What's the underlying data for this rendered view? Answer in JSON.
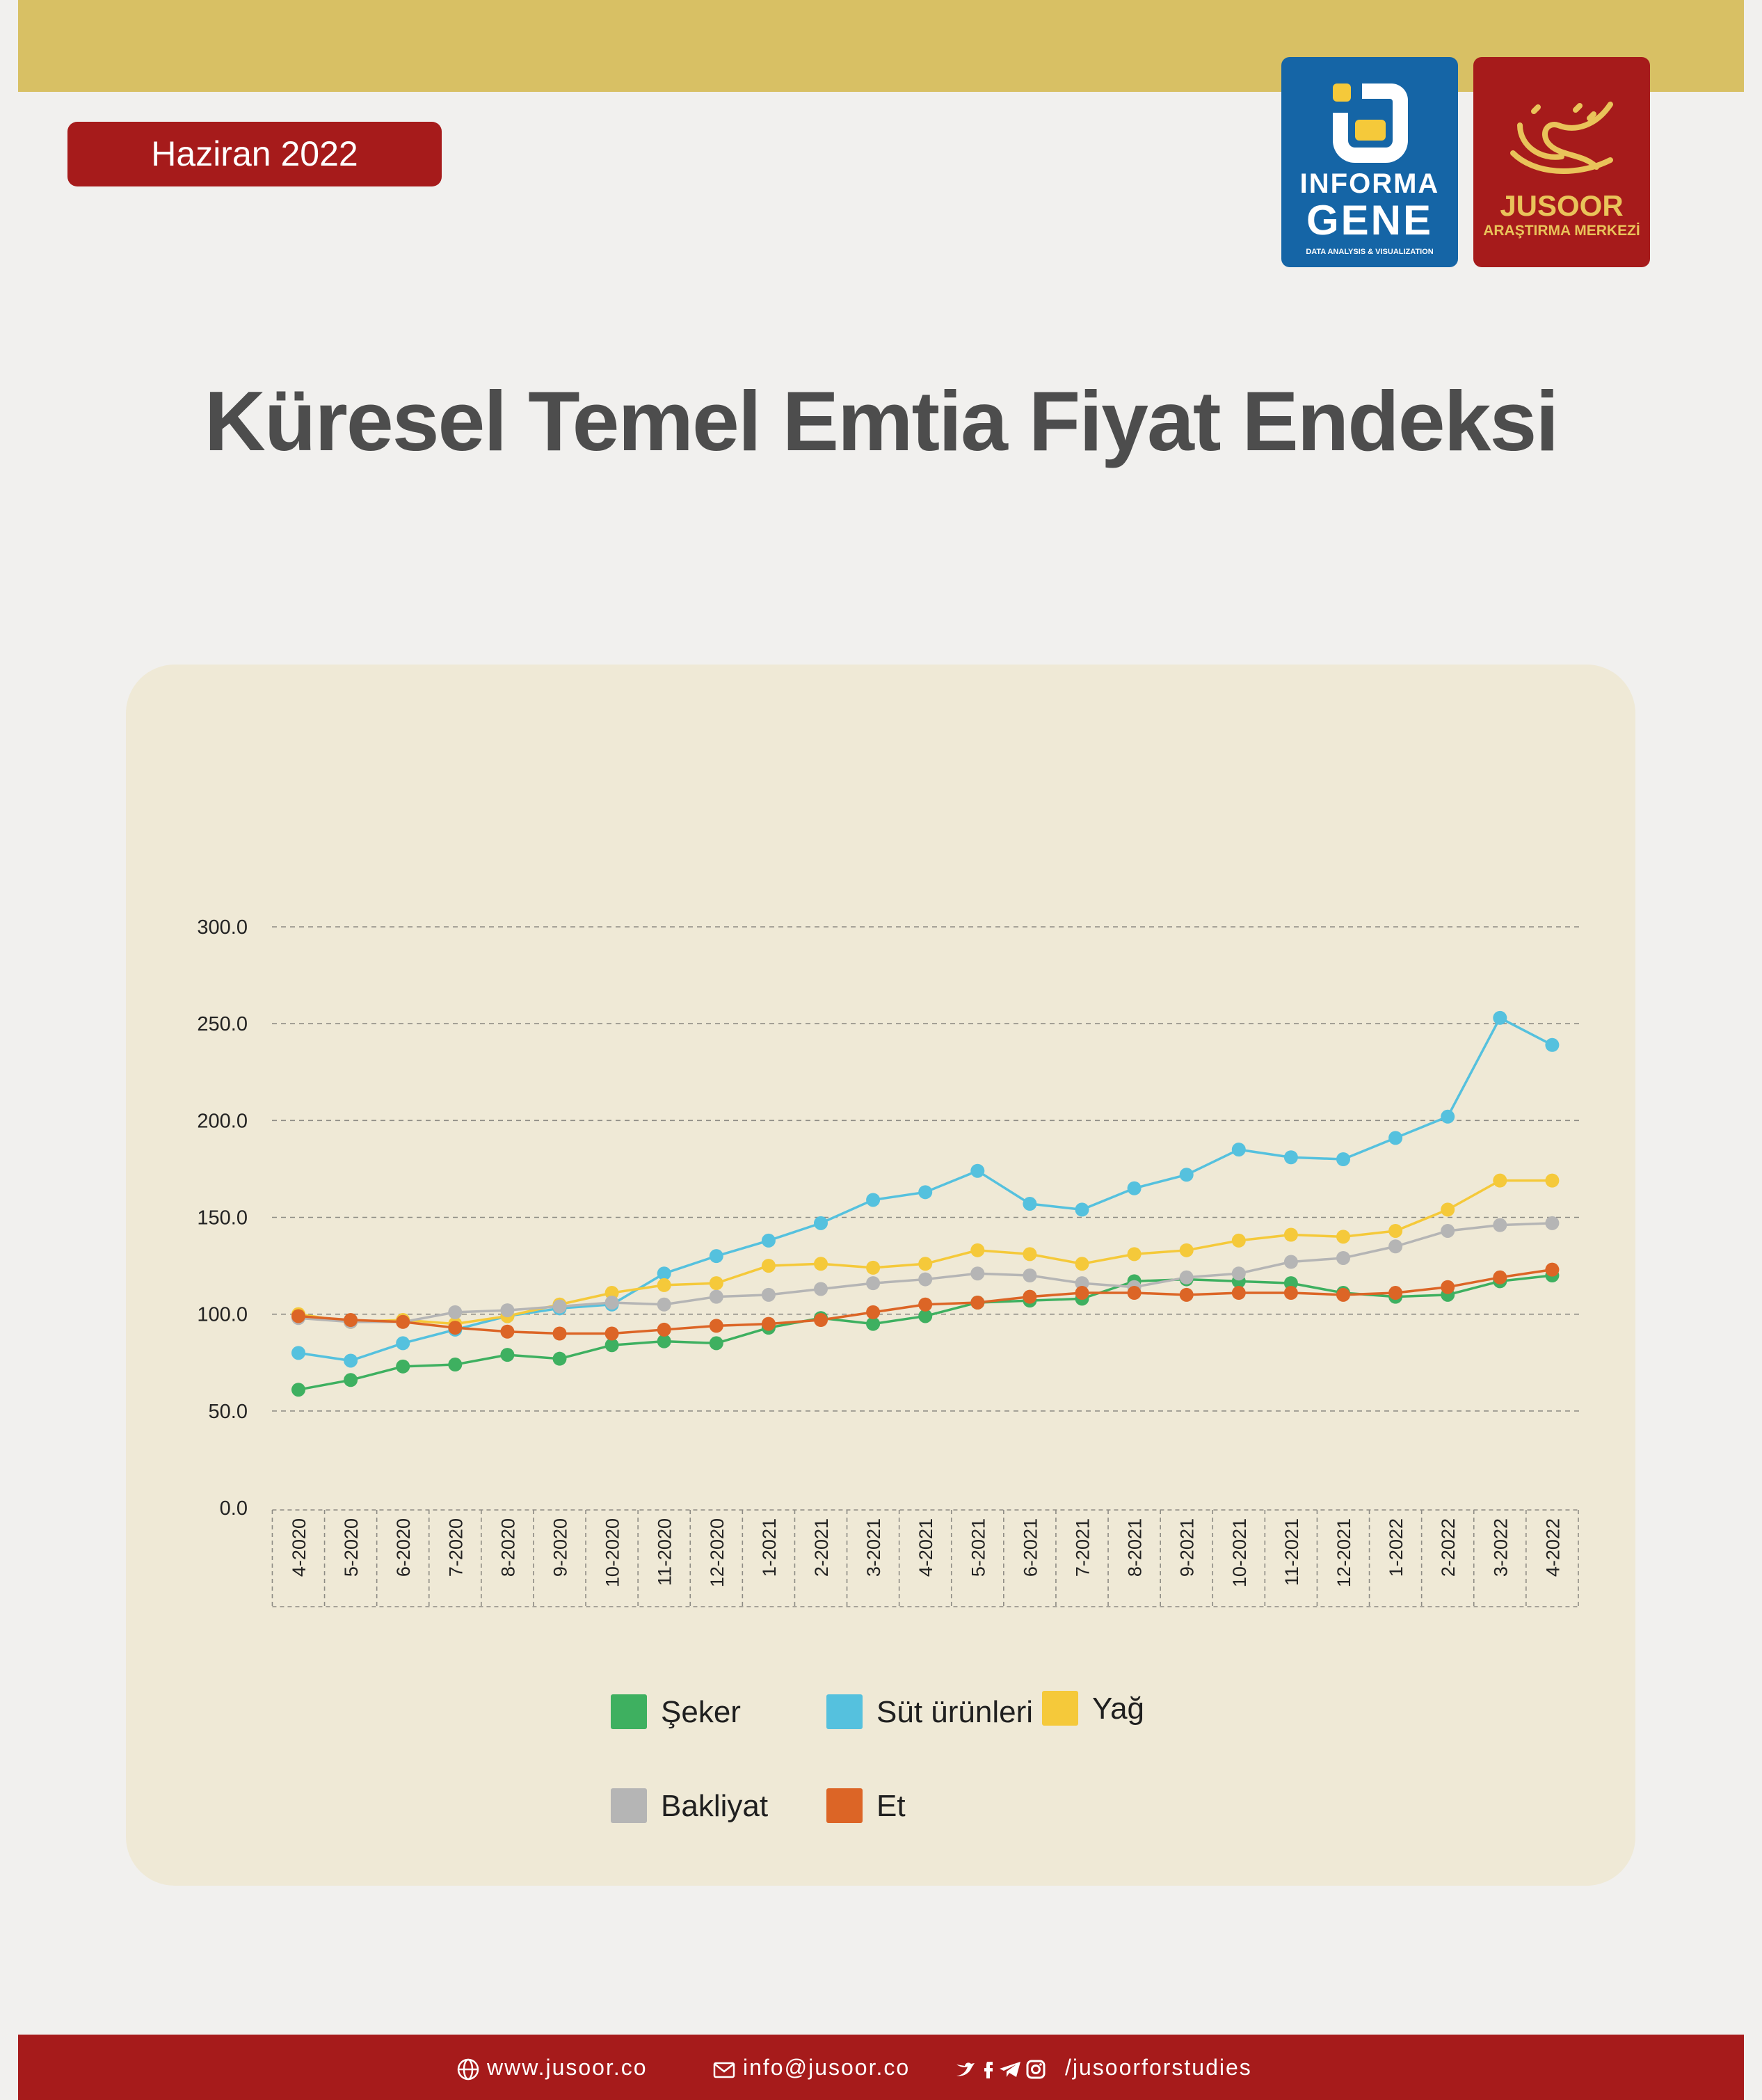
{
  "header": {
    "date": "Haziran 2022",
    "logo_informa": {
      "line1": "INFORMA",
      "line2": "GENE",
      "line3": "DATA ANALYSIS & VISUALIZATION"
    },
    "logo_jusoor": {
      "line1": "JUSOOR",
      "line2": "ARAŞTIRMA MERKEZİ"
    }
  },
  "colors": {
    "top_band": "#d8c064",
    "accent_red": "#a61b1b",
    "panel": "#efe9d6",
    "title": "#4d4d4d"
  },
  "chart_data": {
    "type": "line",
    "title": "Küresel Temel Emtia Fiyat Endeksi",
    "xlabel": "",
    "ylabel": "",
    "ylim": [
      0,
      300
    ],
    "yticks": [
      "0.0",
      "50.0",
      "100.0",
      "150.0",
      "200.0",
      "250.0",
      "300.0"
    ],
    "grid": true,
    "legend_position": "bottom",
    "categories": [
      "4-2020",
      "5-2020",
      "6-2020",
      "7-2020",
      "8-2020",
      "9-2020",
      "10-2020",
      "11-2020",
      "12-2020",
      "1-2021",
      "2-2021",
      "3-2021",
      "4-2021",
      "5-2021",
      "6-2021",
      "7-2021",
      "8-2021",
      "9-2021",
      "10-2021",
      "11-2021",
      "12-2021",
      "1-2022",
      "2-2022",
      "3-2022",
      "4-2022"
    ],
    "series": [
      {
        "name": "Şeker",
        "color": "#3eb060",
        "values": [
          61,
          66,
          73,
          74,
          79,
          77,
          84,
          86,
          85,
          93,
          98,
          95,
          99,
          106,
          107,
          108,
          117,
          118,
          117,
          116,
          111,
          109,
          110,
          117,
          120
        ]
      },
      {
        "name": "Süt ürünleri",
        "color": "#55c1de",
        "values": [
          80,
          76,
          85,
          92,
          99,
          103,
          105,
          121,
          130,
          138,
          147,
          159,
          163,
          174,
          157,
          154,
          165,
          172,
          185,
          181,
          180,
          191,
          202,
          253,
          239
        ]
      },
      {
        "name": "Yağ",
        "color": "#f5c93a",
        "values": [
          100,
          96,
          97,
          95,
          99,
          105,
          111,
          115,
          116,
          125,
          126,
          124,
          126,
          133,
          131,
          126,
          131,
          133,
          138,
          141,
          140,
          143,
          154,
          169,
          169
        ]
      },
      {
        "name": "Bakliyat",
        "color": "#b5b5b5",
        "values": [
          98,
          96,
          96,
          101,
          102,
          104,
          106,
          105,
          109,
          110,
          113,
          116,
          118,
          121,
          120,
          116,
          114,
          119,
          121,
          127,
          129,
          135,
          143,
          146,
          147
        ]
      },
      {
        "name": "Et",
        "color": "#dc6526",
        "values": [
          99,
          97,
          96,
          93,
          91,
          90,
          90,
          92,
          94,
          95,
          97,
          101,
          105,
          106,
          109,
          111,
          111,
          110,
          111,
          111,
          110,
          111,
          114,
          119,
          123
        ]
      }
    ]
  },
  "footer": {
    "website": "www.jusoor.co",
    "email": "info@jusoor.co",
    "social": "/jusoorforstudies"
  }
}
